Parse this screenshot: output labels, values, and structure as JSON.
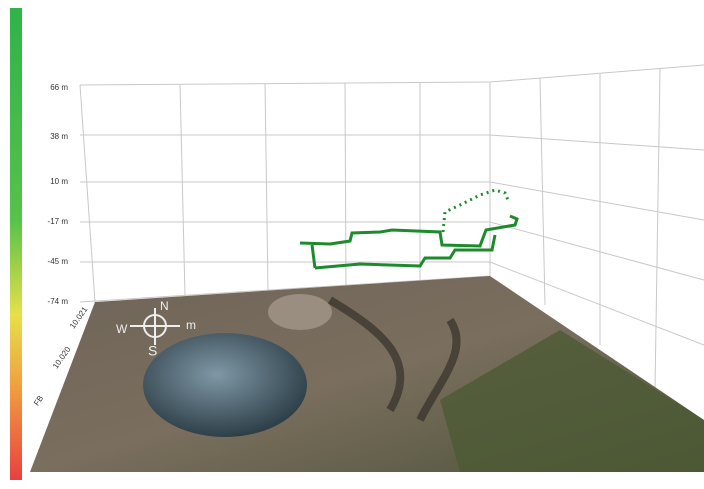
{
  "z_axis": {
    "ticks": [
      "66 m",
      "38 m",
      "10 m",
      "-17 m",
      "-45 m",
      "-74 m"
    ]
  },
  "y_axis": {
    "ticks": [
      "10.021",
      "10.020",
      "FB"
    ]
  },
  "compass": {
    "north": "N",
    "south": "S",
    "west": "W",
    "east": "m"
  }
}
